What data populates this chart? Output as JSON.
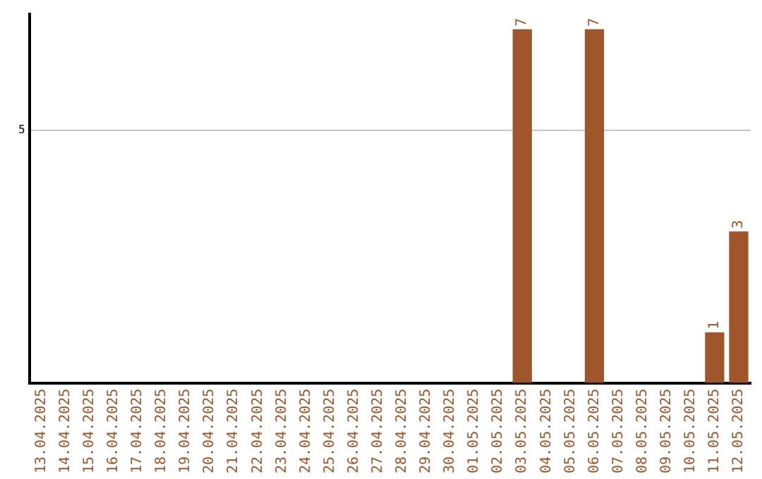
{
  "chart_data": {
    "type": "bar",
    "categories": [
      "13.04.2025",
      "14.04.2025",
      "15.04.2025",
      "16.04.2025",
      "17.04.2025",
      "18.04.2025",
      "19.04.2025",
      "20.04.2025",
      "21.04.2025",
      "22.04.2025",
      "23.04.2025",
      "24.04.2025",
      "25.04.2025",
      "26.04.2025",
      "27.04.2025",
      "28.04.2025",
      "29.04.2025",
      "30.04.2025",
      "01.05.2025",
      "02.05.2025",
      "03.05.2025",
      "04.05.2025",
      "05.05.2025",
      "06.05.2025",
      "07.05.2025",
      "08.05.2025",
      "09.05.2025",
      "10.05.2025",
      "11.05.2025",
      "12.05.2025"
    ],
    "values": [
      null,
      null,
      null,
      null,
      null,
      null,
      null,
      null,
      null,
      null,
      null,
      null,
      null,
      null,
      null,
      null,
      null,
      null,
      null,
      null,
      7,
      null,
      null,
      7,
      null,
      null,
      null,
      null,
      1,
      3
    ],
    "data_labels": true,
    "color": "#a0562a",
    "ylim": [
      0,
      7.3
    ],
    "yticks": [
      5
    ],
    "grid": "y",
    "legend": false
  }
}
